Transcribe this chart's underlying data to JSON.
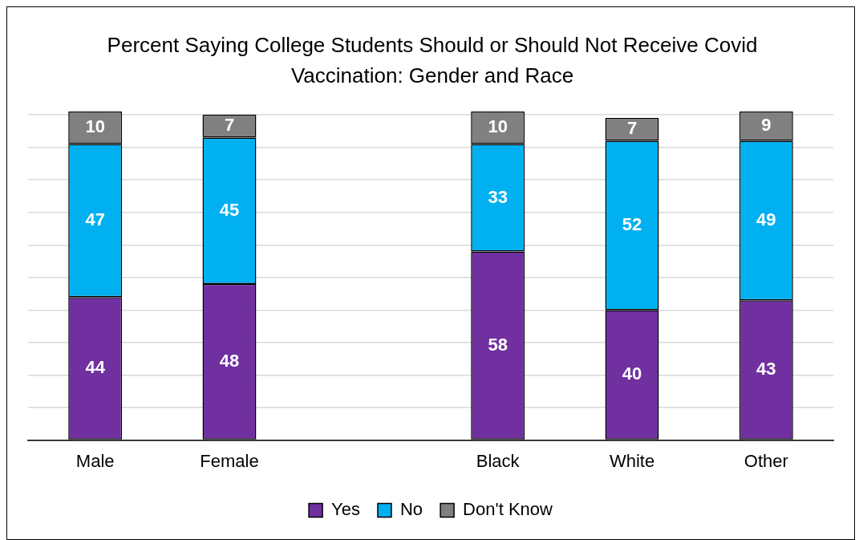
{
  "chart_data": {
    "type": "bar",
    "title": "Percent Saying College Students Should or Should Not Receive Covid Vaccination: Gender and Race",
    "categories": [
      "Male",
      "Female",
      null,
      "Black",
      "White",
      "Other"
    ],
    "stacked": true,
    "series": [
      {
        "name": "Yes",
        "color": "#7030a0",
        "values": [
          44,
          48,
          null,
          58,
          40,
          43
        ]
      },
      {
        "name": "No",
        "color": "#00b0f0",
        "values": [
          47,
          45,
          null,
          33,
          52,
          49
        ]
      },
      {
        "name": "Don't Know",
        "color": "#808080",
        "values": [
          10,
          7,
          null,
          10,
          7,
          9
        ]
      }
    ],
    "ylim": [
      0,
      101
    ],
    "yticks": [
      {
        "value": 0,
        "label": null
      },
      {
        "value": 10,
        "label": null
      },
      {
        "value": 20,
        "label": null
      },
      {
        "value": 30,
        "label": null
      },
      {
        "value": 40,
        "label": null
      },
      {
        "value": 50,
        "label": null
      },
      {
        "value": 60,
        "label": null
      },
      {
        "value": 70,
        "label": null
      },
      {
        "value": 80,
        "label": null
      },
      {
        "value": 90,
        "label": null
      },
      {
        "value": 100,
        "label": null
      }
    ],
    "tick_labels": "x",
    "grid": "y",
    "legend": "bottom",
    "data_labels": true
  }
}
